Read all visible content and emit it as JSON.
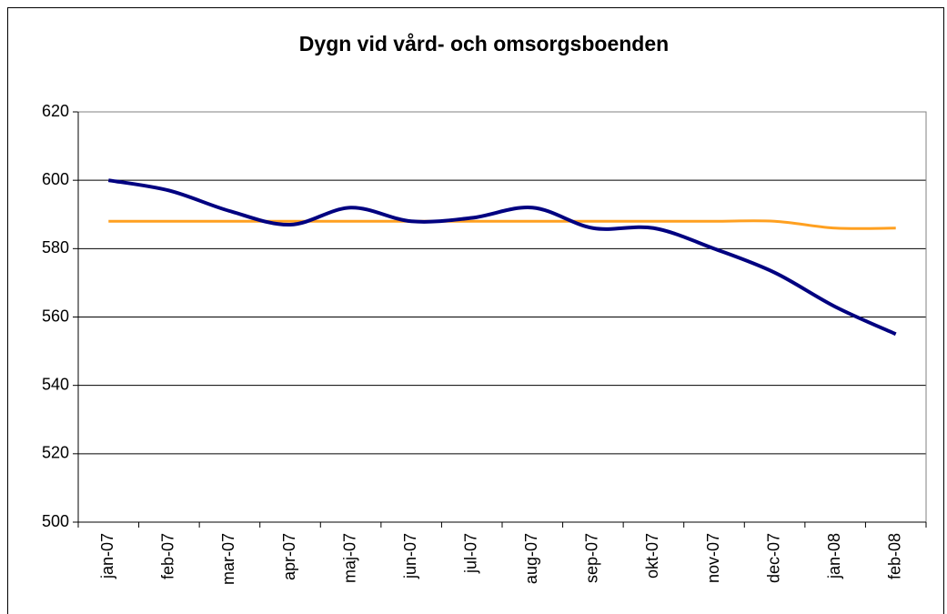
{
  "chart_data": {
    "type": "line",
    "title": "Dygn vid vård- och omsorgsboenden",
    "categories": [
      "jan-07",
      "feb-07",
      "mar-07",
      "apr-07",
      "maj-07",
      "jun-07",
      "jul-07",
      "aug-07",
      "sep-07",
      "okt-07",
      "nov-07",
      "dec-07",
      "jan-08",
      "feb-08"
    ],
    "series": [
      {
        "color": "#000080",
        "values": [
          600,
          597,
          591,
          587,
          592,
          588,
          589,
          592,
          586,
          586,
          580,
          573,
          563,
          555
        ]
      },
      {
        "color": "#ffa020",
        "values": [
          588,
          588,
          588,
          588,
          588,
          588,
          588,
          588,
          588,
          588,
          588,
          588,
          586,
          586
        ]
      }
    ],
    "ylim": [
      500,
      620
    ],
    "yticks": [
      500,
      520,
      540,
      560,
      580,
      600,
      620
    ],
    "grid": true,
    "smooth": true
  }
}
